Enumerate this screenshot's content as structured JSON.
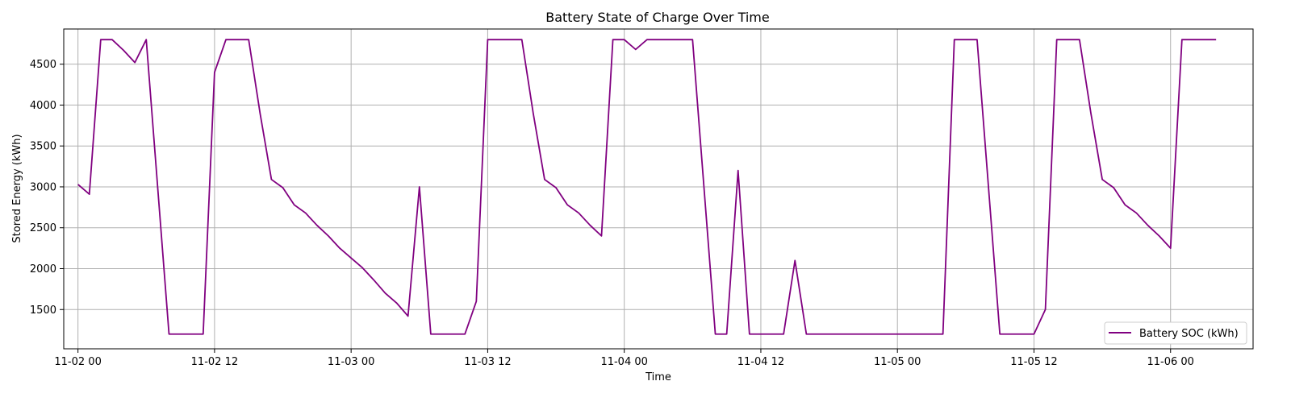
{
  "chart_data": {
    "type": "line",
    "title": "Battery State of Charge Over Time",
    "xlabel": "Time",
    "ylabel": "Stored Energy (kWh)",
    "x_range": [
      "2025-11-01 22:45",
      "2025-11-06 07:15"
    ],
    "ylim": [
      1020,
      4930
    ],
    "x_ticks": [
      {
        "label": "11-02 00",
        "hour": 0
      },
      {
        "label": "11-02 12",
        "hour": 12
      },
      {
        "label": "11-03 00",
        "hour": 24
      },
      {
        "label": "11-03 12",
        "hour": 36
      },
      {
        "label": "11-04 00",
        "hour": 48
      },
      {
        "label": "11-04 12",
        "hour": 60
      },
      {
        "label": "11-05 00",
        "hour": 72
      },
      {
        "label": "11-05 12",
        "hour": 84
      },
      {
        "label": "11-06 00",
        "hour": 96
      }
    ],
    "y_ticks": [
      1500,
      2000,
      2500,
      3000,
      3500,
      4000,
      4500
    ],
    "grid": true,
    "legend_position": "bottom-right",
    "series": [
      {
        "name": "Battery SOC (kWh)",
        "color": "#800080",
        "x_start": "2025-11-02 00:00",
        "x_step_hours": 1,
        "values": [
          3030,
          2910,
          4800,
          4800,
          4670,
          4520,
          4800,
          3000,
          1200,
          1200,
          1200,
          1200,
          4400,
          4800,
          4800,
          4800,
          3900,
          3090,
          2990,
          2780,
          2680,
          2530,
          2400,
          2250,
          2130,
          2010,
          1860,
          1700,
          1580,
          1420,
          3000,
          1200,
          1200,
          1200,
          1200,
          1600,
          4800,
          4800,
          4800,
          4800,
          3900,
          3090,
          2990,
          2780,
          2680,
          2530,
          2400,
          4800,
          4800,
          4680,
          4800,
          4800,
          4800,
          4800,
          4800,
          3000,
          1200,
          1200,
          3200,
          1200,
          1200,
          1200,
          1200,
          2100,
          1200,
          1200,
          1200,
          1200,
          1200,
          1200,
          1200,
          1200,
          1200,
          1200,
          1200,
          1200,
          1200,
          4800,
          4800,
          4800,
          3000,
          1200,
          1200,
          1200,
          1200,
          1500,
          4800,
          4800,
          4800,
          3900,
          3090,
          2990,
          2780,
          2680,
          2530,
          2400,
          2250,
          4800,
          4800,
          4800,
          4800
        ]
      }
    ]
  }
}
